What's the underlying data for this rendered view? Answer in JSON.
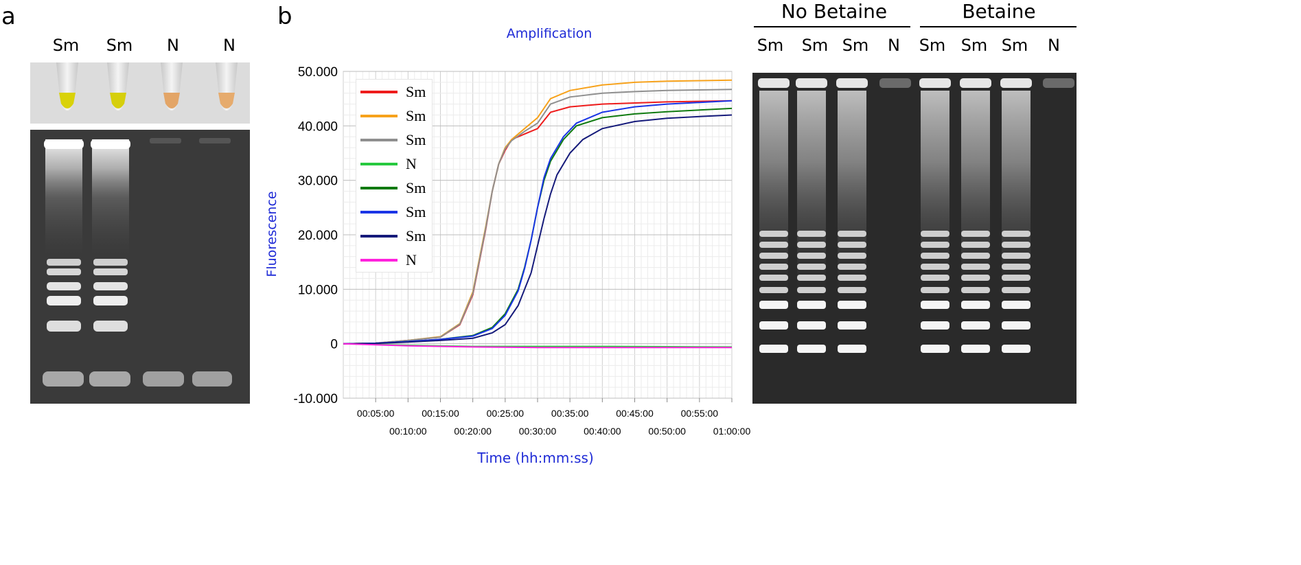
{
  "panel_a": {
    "letter": "a",
    "lanes": [
      "Sm",
      "Sm",
      "N",
      "N"
    ],
    "tube_colors": [
      "#d9d20a",
      "#d6cf0c",
      "#e3a567",
      "#e6ab6d"
    ]
  },
  "panel_b": {
    "letter": "b"
  },
  "panel_c": {
    "groups": [
      {
        "title": "No Betaine",
        "lanes": [
          "Sm",
          "Sm",
          "Sm",
          "N"
        ]
      },
      {
        "title": "Betaine",
        "lanes": [
          "Sm",
          "Sm",
          "Sm",
          "N"
        ]
      }
    ]
  },
  "chart_data": {
    "type": "line",
    "title": "Amplification",
    "xlabel": "Time (hh:mm:ss)",
    "ylabel": "Fluorescence",
    "xlim": [
      0,
      60
    ],
    "ylim": [
      -10000,
      50000
    ],
    "yticks": [
      "50.000",
      "40.000",
      "30.000",
      "20.000",
      "10.000",
      "0",
      "-10.000"
    ],
    "xticks_upper": [
      "00:05:00",
      "00:15:00",
      "00:25:00",
      "00:35:00",
      "00:45:00",
      "00:55:00"
    ],
    "xticks_lower": [
      "00:10:00",
      "00:20:00",
      "00:30:00",
      "00:40:00",
      "00:50:00",
      "01:00:00"
    ],
    "grid": true,
    "legend_position": "top-left",
    "series": [
      {
        "name": "Sm",
        "color": "#ee1c1c",
        "x": [
          0,
          5,
          10,
          15,
          18,
          20,
          21,
          22,
          23,
          24,
          25,
          26,
          28,
          30,
          32,
          35,
          40,
          45,
          50,
          55,
          60
        ],
        "y": [
          0,
          100,
          600,
          1200,
          3500,
          9000,
          15000,
          21000,
          28000,
          33000,
          35500,
          37500,
          38500,
          39500,
          42500,
          43500,
          44000,
          44200,
          44400,
          44500,
          44600
        ]
      },
      {
        "name": "Sm",
        "color": "#f7a21b",
        "x": [
          0,
          5,
          10,
          15,
          18,
          20,
          21,
          22,
          23,
          24,
          25,
          26,
          28,
          30,
          32,
          35,
          40,
          45,
          50,
          55,
          60
        ],
        "y": [
          0,
          100,
          600,
          1300,
          3700,
          9500,
          15500,
          21500,
          28000,
          33000,
          36000,
          37500,
          39500,
          41500,
          45000,
          46500,
          47500,
          48000,
          48200,
          48300,
          48400
        ]
      },
      {
        "name": "Sm",
        "color": "#8f8f8f",
        "x": [
          0,
          5,
          10,
          15,
          18,
          20,
          21,
          22,
          23,
          24,
          25,
          26,
          28,
          30,
          32,
          35,
          40,
          45,
          50,
          55,
          60
        ],
        "y": [
          0,
          100,
          600,
          1200,
          3600,
          9200,
          15200,
          21200,
          28000,
          33000,
          35800,
          37300,
          39000,
          40500,
          44000,
          45300,
          46000,
          46300,
          46500,
          46600,
          46700
        ]
      },
      {
        "name": "N",
        "color": "#27c93f",
        "x": [
          0,
          10,
          20,
          30,
          40,
          50,
          60
        ],
        "y": [
          0,
          -300,
          -500,
          -500,
          -500,
          -550,
          -600
        ]
      },
      {
        "name": "Sm",
        "color": "#0f7a10",
        "x": [
          0,
          5,
          10,
          15,
          20,
          23,
          25,
          27,
          28,
          29,
          30,
          31,
          32,
          34,
          36,
          40,
          45,
          50,
          55,
          60
        ],
        "y": [
          0,
          100,
          400,
          800,
          1500,
          3000,
          5500,
          10000,
          14000,
          19000,
          25000,
          30000,
          33500,
          37500,
          40000,
          41500,
          42200,
          42600,
          42900,
          43200
        ]
      },
      {
        "name": "Sm",
        "color": "#1a35e6",
        "x": [
          0,
          5,
          10,
          15,
          20,
          23,
          25,
          27,
          28,
          29,
          30,
          31,
          32,
          34,
          36,
          40,
          45,
          50,
          55,
          60
        ],
        "y": [
          0,
          100,
          400,
          800,
          1400,
          2800,
          5200,
          9700,
          13800,
          19000,
          25000,
          30500,
          34000,
          38000,
          40500,
          42500,
          43500,
          44000,
          44300,
          44600
        ]
      },
      {
        "name": "Sm",
        "color": "#151a7a",
        "x": [
          0,
          5,
          10,
          15,
          20,
          23,
          25,
          27,
          29,
          30,
          31,
          32,
          33,
          35,
          37,
          40,
          45,
          50,
          55,
          60
        ],
        "y": [
          0,
          50,
          300,
          600,
          1000,
          2000,
          3500,
          7000,
          13000,
          18000,
          23000,
          27500,
          31000,
          35000,
          37500,
          39500,
          40800,
          41400,
          41700,
          42000
        ]
      },
      {
        "name": "N",
        "color": "#ff22dd",
        "x": [
          0,
          10,
          20,
          30,
          40,
          50,
          60
        ],
        "y": [
          0,
          -400,
          -600,
          -700,
          -700,
          -700,
          -700
        ]
      }
    ]
  }
}
